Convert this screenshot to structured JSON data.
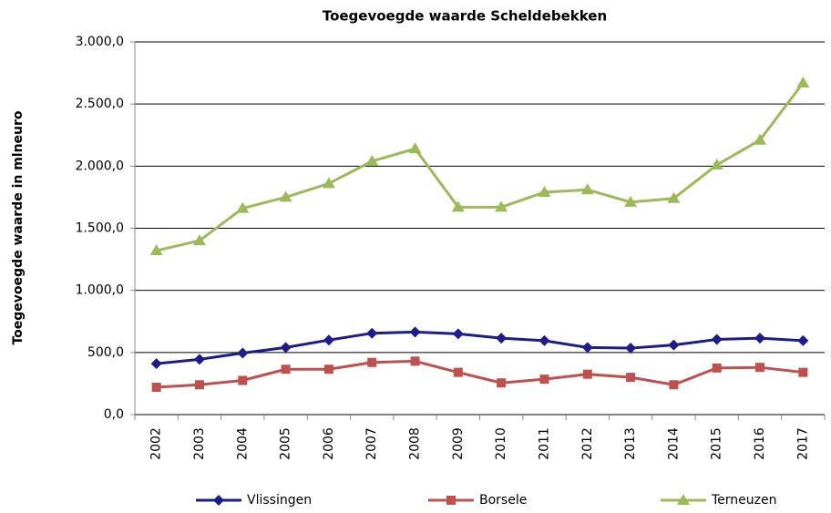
{
  "chart_data": {
    "type": "line",
    "title": "Toegevoegde waarde Scheldebekken",
    "y_label": "Toegevoegde waarde in mlneuro",
    "categories": [
      "2002",
      "2003",
      "2004",
      "2005",
      "2006",
      "2007",
      "2008",
      "2009",
      "2010",
      "2011",
      "2012",
      "2013",
      "2014",
      "2015",
      "2016",
      "2017"
    ],
    "series": [
      {
        "name": "Vlissingen",
        "color": "#1c1c8c",
        "marker": "diamond",
        "values": [
          410,
          445,
          495,
          540,
          600,
          655,
          665,
          650,
          615,
          595,
          540,
          535,
          560,
          605,
          615,
          595
        ]
      },
      {
        "name": "Borsele",
        "color": "#c0504d",
        "marker": "square",
        "values": [
          220,
          240,
          275,
          365,
          365,
          420,
          430,
          340,
          255,
          285,
          325,
          300,
          240,
          375,
          380,
          340
        ]
      },
      {
        "name": "Terneuzen",
        "color": "#9bbb59",
        "marker": "triangle",
        "values": [
          1320,
          1400,
          1660,
          1750,
          1860,
          2040,
          2140,
          1670,
          1670,
          1790,
          1810,
          1710,
          1740,
          2010,
          2210,
          2670
        ]
      }
    ],
    "ylim": [
      0,
      3000
    ],
    "yticks": [
      {
        "value": 0,
        "label": "0,0"
      },
      {
        "value": 500,
        "label": "500,0"
      },
      {
        "value": 1000,
        "label": "1.000,0"
      },
      {
        "value": 1500,
        "label": "1.500,0"
      },
      {
        "value": 2000,
        "label": "2.000,0"
      },
      {
        "value": 2500,
        "label": "2.500,0"
      },
      {
        "value": 3000,
        "label": "3.000,0"
      }
    ],
    "grid": true,
    "legend": "bottom"
  }
}
